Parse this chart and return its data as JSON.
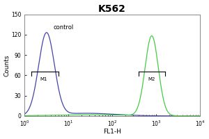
{
  "title": "K562",
  "xlabel": "FL1-H",
  "ylabel": "Counts",
  "xlim_log": [
    0,
    4
  ],
  "ylim": [
    0,
    150
  ],
  "yticks": [
    0,
    30,
    60,
    90,
    120,
    150
  ],
  "control_label": "control",
  "m1_label": "M1",
  "m2_label": "M2",
  "blue_color": "#4444aa",
  "green_color": "#44cc44",
  "bg_color": "#ffffff",
  "plot_bg": "#ffffff",
  "border_color": "#aaaaaa",
  "blue_peak_log": 0.5,
  "blue_peak_height": 122,
  "blue_sigma_log": 0.18,
  "green_peak_log": 2.9,
  "green_peak_height": 118,
  "green_sigma_log": 0.15
}
